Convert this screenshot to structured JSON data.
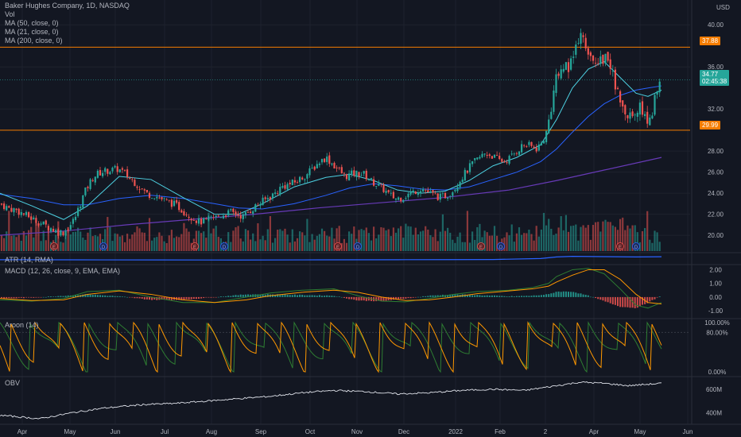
{
  "legend": {
    "title": "Baker Hughes Company, 1D, NASDAQ",
    "vol": "Vol",
    "ma50": "MA (50, close, 0)",
    "ma21": "MA (21, close, 0)",
    "ma200": "MA (200, close, 0)"
  },
  "currency": "USD",
  "price_tags": {
    "resistance": "37.88",
    "last": "34.77",
    "countdown": "02:45:38",
    "support": "29.99"
  },
  "indicators": {
    "atr": "ATR (14, RMA)",
    "macd": "MACD (12, 26, close, 9, EMA, EMA)",
    "aroon": "Aroon (14)",
    "obv": "OBV"
  },
  "colors": {
    "background": "#131722",
    "up": "#26a69a",
    "down": "#ef5350",
    "ma21": "#4dd0e1",
    "ma50": "#2962ff",
    "ma200": "#673ab7",
    "level": "#f57c00",
    "aroon_up": "#2e7d32",
    "aroon_down": "#ff9800"
  },
  "chart_data": [
    {
      "type": "candlestick",
      "title": "Baker Hughes Company, 1D, NASDAQ",
      "y_axis_label": "USD",
      "y_ticks": [
        "20.00",
        "22.00",
        "24.00",
        "26.00",
        "28.00",
        "32.00",
        "36.00",
        "40.00"
      ],
      "x_ticks": [
        "Apr",
        "May",
        "Jun",
        "Jul",
        "Aug",
        "Sep",
        "Oct",
        "Nov",
        "Dec",
        "2022",
        "Feb",
        "2",
        "Apr",
        "May",
        "Jun"
      ],
      "ylim": [
        18.5,
        41
      ],
      "horizontal_levels": [
        37.88,
        29.99
      ],
      "last_price": 34.77,
      "close_path_x": [
        0,
        10,
        20,
        30,
        40,
        50,
        58,
        66,
        73,
        80,
        87,
        94,
        100,
        106,
        112,
        118,
        124,
        132,
        140,
        148,
        155,
        162,
        170,
        178,
        186,
        194,
        202,
        210,
        218,
        226,
        234,
        242,
        250,
        258,
        266,
        274,
        282,
        290,
        298,
        306,
        314,
        322,
        330,
        338,
        346,
        354,
        362,
        370,
        378,
        386,
        394,
        402,
        410,
        418,
        426,
        434,
        442,
        450,
        458,
        466,
        474,
        482,
        490,
        498,
        506,
        514,
        522,
        530,
        538,
        546,
        554,
        562,
        570,
        578,
        586,
        594,
        602,
        610,
        618,
        626,
        634,
        642,
        650,
        658,
        666,
        674,
        682,
        690,
        696,
        702,
        708,
        714,
        720,
        726,
        732,
        738,
        744,
        750,
        756,
        762,
        768,
        774,
        780,
        786,
        792,
        798,
        804,
        810,
        816,
        822,
        828
      ],
      "close_path_y": [
        23.0,
        22.6,
        22.4,
        22.0,
        21.6,
        21.2,
        20.9,
        20.6,
        20.3,
        20.3,
        20.8,
        21.6,
        22.8,
        24.0,
        24.9,
        25.6,
        25.9,
        26.1,
        26.2,
        26.3,
        26.0,
        25.5,
        25.0,
        24.4,
        23.9,
        23.8,
        23.5,
        23.2,
        23.0,
        22.6,
        22.1,
        21.7,
        21.3,
        21.3,
        21.6,
        21.8,
        22.0,
        22.2,
        22.0,
        21.8,
        22.3,
        22.8,
        23.2,
        23.6,
        24.0,
        24.6,
        24.8,
        25.0,
        25.4,
        25.8,
        26.4,
        27.0,
        27.4,
        26.8,
        26.2,
        25.6,
        25.8,
        25.9,
        25.8,
        25.2,
        24.8,
        24.4,
        23.8,
        23.5,
        23.6,
        23.9,
        24.2,
        24.5,
        24.1,
        23.8,
        23.6,
        23.8,
        24.3,
        25.2,
        26.0,
        26.8,
        27.3,
        27.8,
        27.6,
        27.2,
        27.0,
        27.4,
        28.0,
        28.6,
        28.5,
        28.2,
        28.8,
        30.5,
        33.5,
        35.5,
        36.5,
        35.5,
        36.6,
        38.0,
        39.0,
        37.0,
        36.4,
        36.8,
        36.6,
        37.2,
        36.0,
        34.0,
        33.0,
        31.5,
        31.2,
        31.8,
        32.2,
        31.5,
        30.5,
        32.5,
        34.8
      ],
      "ma21_x": [
        0,
        40,
        80,
        110,
        150,
        190,
        230,
        270,
        300,
        330,
        370,
        410,
        440,
        470,
        500,
        530,
        560,
        590,
        620,
        650,
        680,
        700,
        720,
        740,
        760,
        780,
        800,
        815,
        832
      ],
      "ma21_y": [
        24.0,
        22.8,
        21.5,
        22.8,
        25.6,
        25.3,
        23.6,
        22.0,
        22.0,
        23.0,
        24.6,
        25.5,
        25.8,
        25.2,
        24.3,
        24.0,
        24.2,
        25.2,
        26.6,
        27.4,
        28.6,
        31.0,
        34.0,
        35.8,
        36.5,
        35.0,
        33.5,
        33.2,
        33.8
      ],
      "ma50_x": [
        0,
        40,
        80,
        110,
        150,
        190,
        230,
        270,
        300,
        330,
        370,
        410,
        440,
        470,
        500,
        530,
        560,
        590,
        620,
        650,
        680,
        700,
        720,
        740,
        760,
        780,
        800,
        815,
        832
      ],
      "ma50_y": [
        23.9,
        23.5,
        22.9,
        22.9,
        23.5,
        23.8,
        23.5,
        23.0,
        22.6,
        22.5,
        23.0,
        23.8,
        24.5,
        24.9,
        24.7,
        24.4,
        24.3,
        24.6,
        25.3,
        26.0,
        27.0,
        28.2,
        29.8,
        31.3,
        32.5,
        33.3,
        33.8,
        34.0,
        34.2
      ],
      "ma200_x": [
        0,
        80,
        160,
        240,
        320,
        400,
        480,
        560,
        640,
        700,
        760,
        832
      ],
      "ma200_y": [
        20.0,
        20.4,
        21.0,
        21.5,
        22.0,
        22.6,
        23.1,
        23.6,
        24.3,
        25.2,
        26.2,
        27.4
      ],
      "earnings_markers_x": [
        68,
        245,
        425,
        605,
        780
      ],
      "dividend_markers_x": [
        130,
        282,
        450,
        630,
        800
      ]
    },
    {
      "type": "area",
      "title": "ATR (14, RMA)",
      "x": [
        0,
        100,
        200,
        300,
        400,
        500,
        560,
        620,
        680,
        700,
        720,
        760,
        800,
        832
      ],
      "values": [
        0.52,
        0.5,
        0.48,
        0.47,
        0.5,
        0.52,
        0.53,
        0.55,
        0.7,
        0.95,
        1.05,
        1.0,
        0.95,
        0.98
      ]
    },
    {
      "type": "bar",
      "title": "MACD (12, 26, close, 9, EMA, EMA)",
      "y_ticks": [
        "2.00",
        "1.00",
        "0.00",
        "-1.00"
      ],
      "ylim": [
        -1.4,
        2.2
      ],
      "macd_x": [
        0,
        40,
        80,
        110,
        150,
        190,
        230,
        270,
        310,
        340,
        380,
        420,
        450,
        480,
        510,
        540,
        570,
        600,
        640,
        670,
        690,
        700,
        720,
        740,
        760,
        780,
        800,
        815,
        832
      ],
      "macd_y": [
        -0.2,
        -0.3,
        -0.1,
        0.4,
        0.5,
        0.0,
        -0.4,
        -0.4,
        0.0,
        0.3,
        0.5,
        0.6,
        0.1,
        -0.3,
        -0.35,
        -0.1,
        0.2,
        0.4,
        0.5,
        0.7,
        1.0,
        1.5,
        2.0,
        2.1,
        1.7,
        0.6,
        -0.6,
        -0.8,
        -0.4
      ],
      "signal_y": [
        -0.1,
        -0.25,
        -0.2,
        0.2,
        0.45,
        0.2,
        -0.2,
        -0.4,
        -0.2,
        0.1,
        0.35,
        0.5,
        0.35,
        0.0,
        -0.25,
        -0.2,
        0.0,
        0.25,
        0.45,
        0.6,
        0.8,
        1.1,
        1.6,
        2.0,
        2.0,
        1.3,
        0.2,
        -0.4,
        -0.5
      ]
    },
    {
      "type": "line",
      "title": "Aroon (14)",
      "y_ticks": [
        "100.00%",
        "80.00%",
        "0.00%"
      ],
      "ylim": [
        0,
        100
      ]
    },
    {
      "type": "line",
      "title": "OBV",
      "y_ticks": [
        "600M",
        "400M"
      ],
      "x": [
        0,
        50,
        90,
        130,
        180,
        220,
        260,
        300,
        340,
        380,
        420,
        460,
        500,
        540,
        580,
        620,
        660,
        690,
        710,
        730,
        760,
        790,
        810,
        832
      ],
      "values": [
        380,
        350,
        400,
        440,
        470,
        480,
        500,
        520,
        540,
        570,
        590,
        580,
        560,
        570,
        590,
        600,
        590,
        620,
        640,
        660,
        650,
        630,
        640,
        650
      ]
    }
  ]
}
